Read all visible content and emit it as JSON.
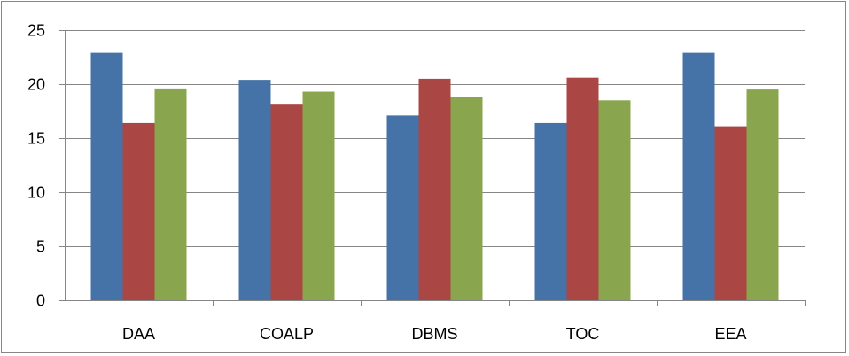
{
  "chart_data": {
    "type": "bar",
    "title": "",
    "xlabel": "",
    "ylabel": "",
    "categories": [
      "DAA",
      "COALP",
      "DBMS",
      "TOC",
      "EEA"
    ],
    "series": [
      {
        "color": "#4572A7",
        "values": [
          22.9,
          20.4,
          17.1,
          16.4,
          22.9
        ]
      },
      {
        "color": "#AA4643",
        "values": [
          16.4,
          18.1,
          20.5,
          20.6,
          16.1
        ]
      },
      {
        "color": "#89A54E",
        "values": [
          19.6,
          19.3,
          18.8,
          18.5,
          19.5
        ]
      }
    ],
    "ylim": [
      0,
      25
    ],
    "yticks": [
      "0",
      "5",
      "10",
      "15",
      "20",
      "25"
    ],
    "grid": true,
    "legend": "none"
  }
}
